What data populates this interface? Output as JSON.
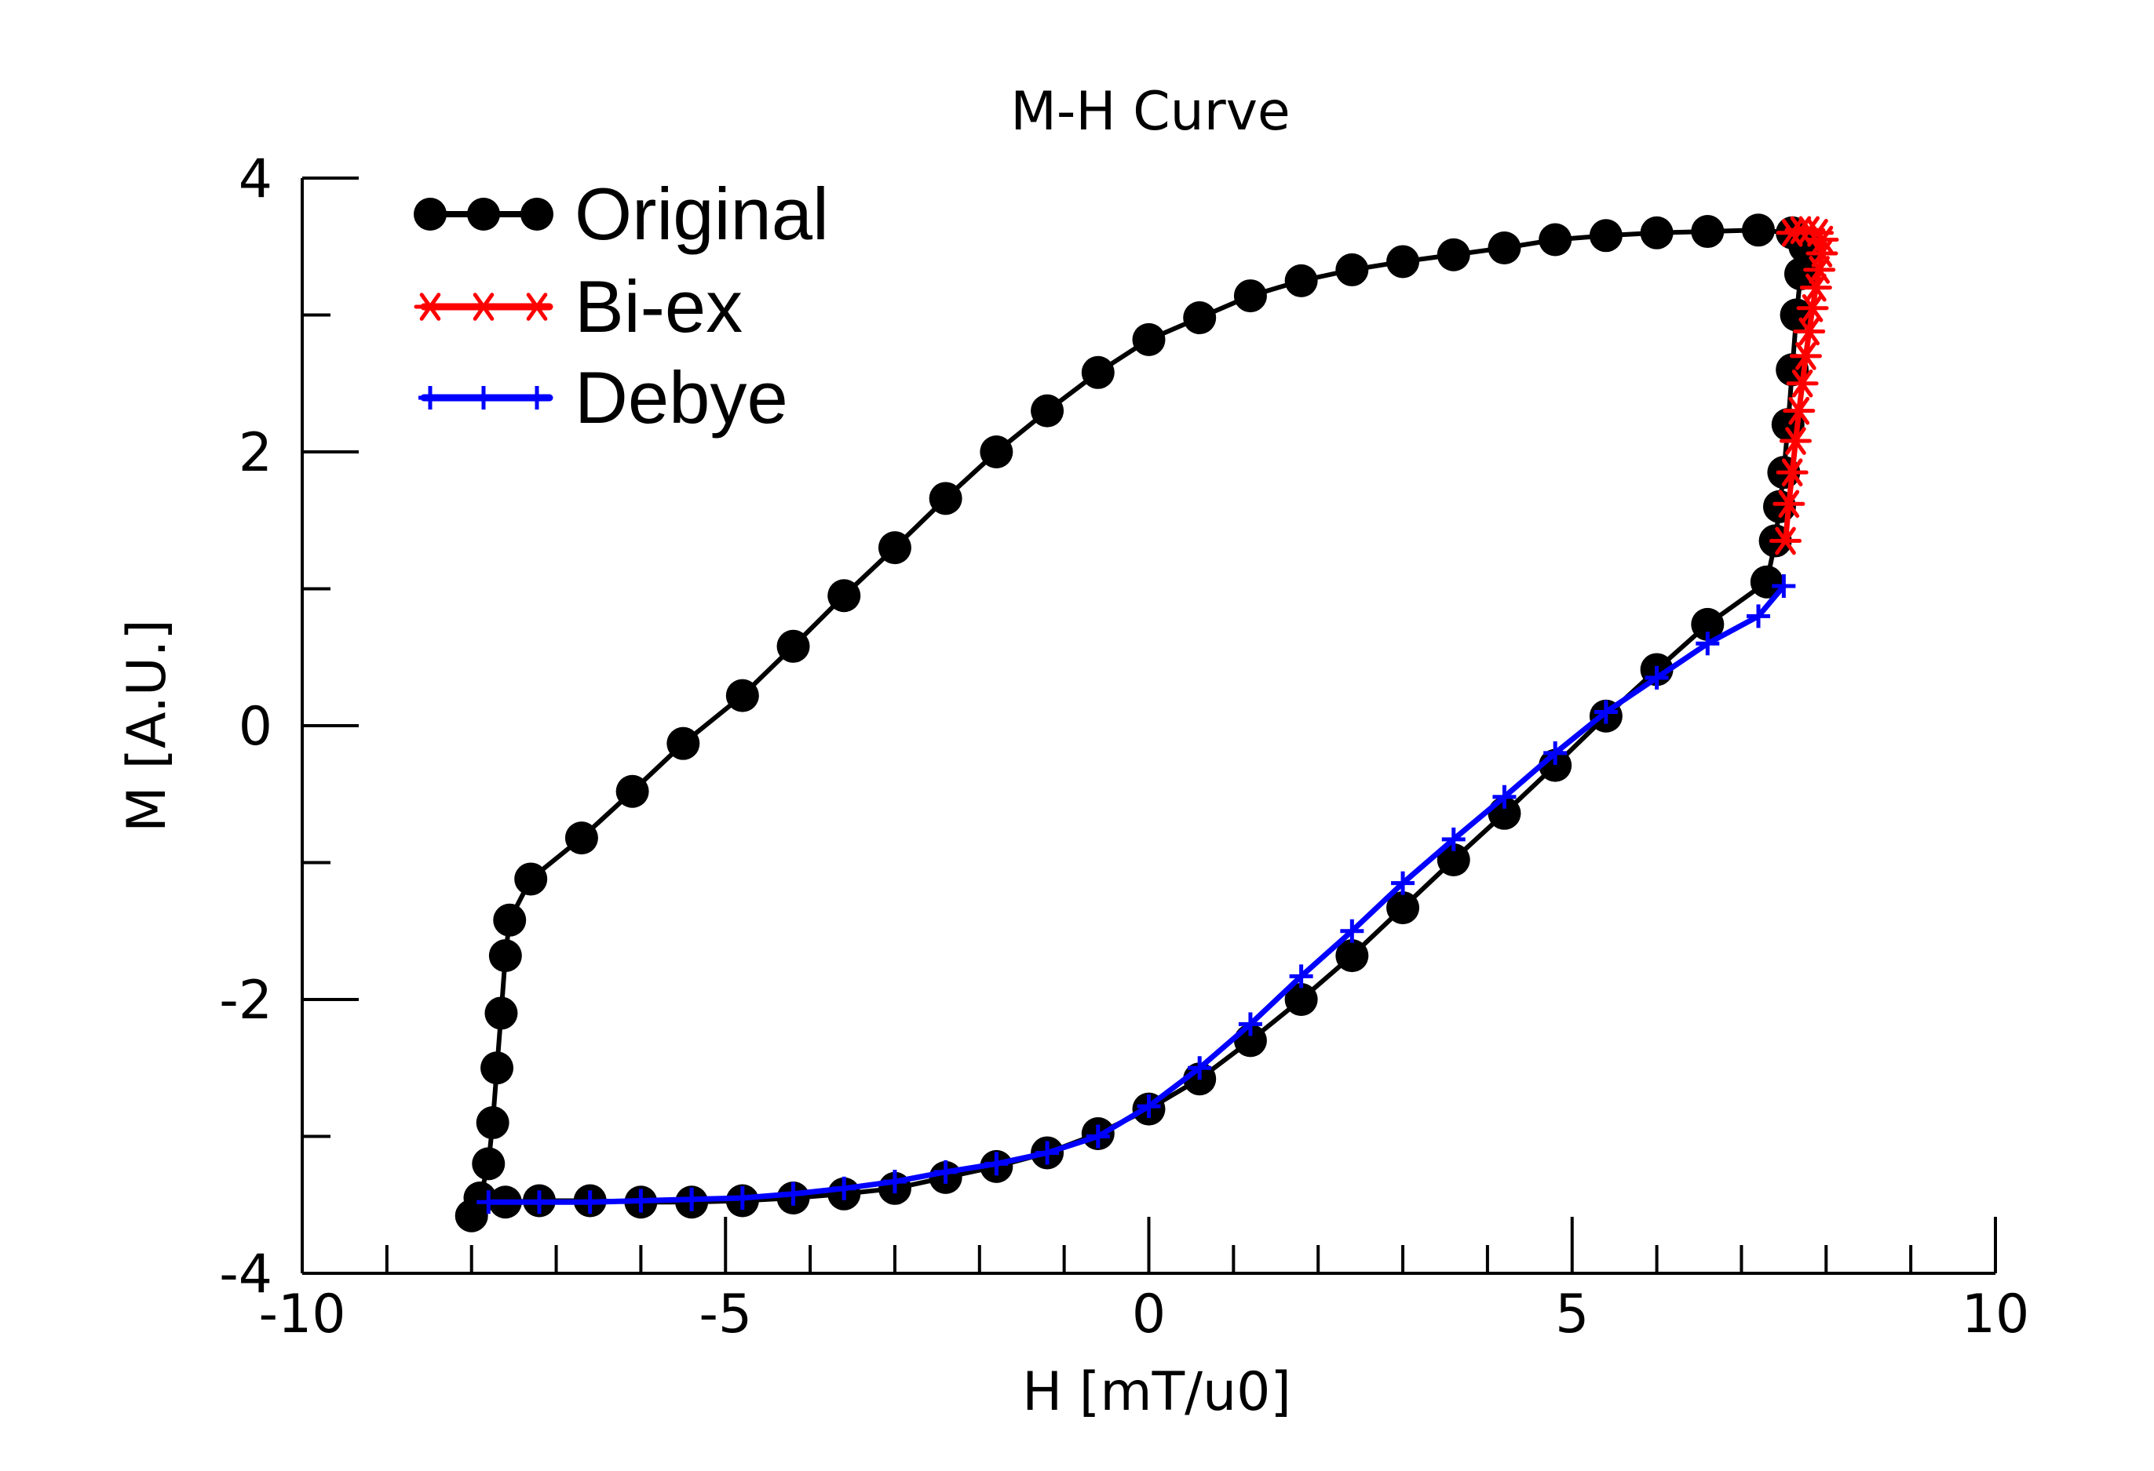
{
  "chart_data": {
    "type": "line",
    "title": "M-H Curve",
    "xlabel": "H [mT/u0]",
    "ylabel": "M [A.U.]",
    "xlim": [
      -10,
      10
    ],
    "ylim": [
      -4,
      4
    ],
    "x_ticks": [
      -10,
      -5,
      0,
      5,
      10
    ],
    "y_ticks": [
      -4,
      -2,
      0,
      2,
      4
    ],
    "x_tick_labels": [
      "-10",
      "-5",
      "0",
      "5",
      "10"
    ],
    "y_tick_labels": [
      "-4",
      "-2",
      "0",
      "2",
      "4"
    ],
    "grid": false,
    "legend_position": "top-left",
    "series": [
      {
        "name": "Original",
        "color": "#000000",
        "marker": "circle",
        "points": [
          [
            -8.0,
            -3.58
          ],
          [
            -7.9,
            -3.45
          ],
          [
            -7.8,
            -3.2
          ],
          [
            -7.75,
            -2.9
          ],
          [
            -7.7,
            -2.5
          ],
          [
            -7.65,
            -2.1
          ],
          [
            -7.6,
            -1.68
          ],
          [
            -7.55,
            -1.42
          ],
          [
            -7.3,
            -1.12
          ],
          [
            -6.7,
            -0.82
          ],
          [
            -6.1,
            -0.48
          ],
          [
            -5.5,
            -0.13
          ],
          [
            -4.8,
            0.22
          ],
          [
            -4.2,
            0.58
          ],
          [
            -3.6,
            0.95
          ],
          [
            -3.0,
            1.3
          ],
          [
            -2.4,
            1.66
          ],
          [
            -1.8,
            2.0
          ],
          [
            -1.2,
            2.3
          ],
          [
            -0.6,
            2.58
          ],
          [
            0.0,
            2.82
          ],
          [
            0.6,
            2.98
          ],
          [
            1.2,
            3.14
          ],
          [
            1.8,
            3.25
          ],
          [
            2.4,
            3.33
          ],
          [
            3.0,
            3.39
          ],
          [
            3.6,
            3.44
          ],
          [
            4.2,
            3.49
          ],
          [
            4.8,
            3.55
          ],
          [
            5.4,
            3.58
          ],
          [
            6.0,
            3.6
          ],
          [
            6.6,
            3.61
          ],
          [
            7.2,
            3.62
          ],
          [
            7.6,
            3.6
          ],
          [
            7.75,
            3.5
          ],
          [
            7.7,
            3.3
          ],
          [
            7.65,
            3.0
          ],
          [
            7.6,
            2.6
          ],
          [
            7.55,
            2.2
          ],
          [
            7.5,
            1.85
          ],
          [
            7.45,
            1.6
          ],
          [
            7.4,
            1.35
          ],
          [
            7.3,
            1.05
          ],
          [
            6.6,
            0.74
          ],
          [
            6.0,
            0.41
          ],
          [
            5.4,
            0.07
          ],
          [
            4.8,
            -0.29
          ],
          [
            4.2,
            -0.64
          ],
          [
            3.6,
            -0.98
          ],
          [
            3.0,
            -1.33
          ],
          [
            2.4,
            -1.68
          ],
          [
            1.8,
            -2.0
          ],
          [
            1.2,
            -2.3
          ],
          [
            0.6,
            -2.58
          ],
          [
            0.0,
            -2.8
          ],
          [
            -0.6,
            -2.98
          ],
          [
            -1.2,
            -3.12
          ],
          [
            -1.8,
            -3.22
          ],
          [
            -2.4,
            -3.3
          ],
          [
            -3.0,
            -3.38
          ],
          [
            -3.6,
            -3.42
          ],
          [
            -4.2,
            -3.45
          ],
          [
            -4.8,
            -3.47
          ],
          [
            -5.4,
            -3.48
          ],
          [
            -6.0,
            -3.48
          ],
          [
            -6.6,
            -3.47
          ],
          [
            -7.2,
            -3.47
          ],
          [
            -7.6,
            -3.48
          ]
        ]
      },
      {
        "name": "Bi-ex",
        "color": "#ff0000",
        "marker": "star",
        "points": [
          [
            7.52,
            1.35
          ],
          [
            7.56,
            1.62
          ],
          [
            7.6,
            1.85
          ],
          [
            7.64,
            2.08
          ],
          [
            7.68,
            2.3
          ],
          [
            7.72,
            2.5
          ],
          [
            7.76,
            2.7
          ],
          [
            7.8,
            2.88
          ],
          [
            7.84,
            3.05
          ],
          [
            7.88,
            3.2
          ],
          [
            7.92,
            3.33
          ],
          [
            7.95,
            3.45
          ],
          [
            7.96,
            3.55
          ],
          [
            7.9,
            3.6
          ],
          [
            7.8,
            3.62
          ],
          [
            7.7,
            3.62
          ],
          [
            7.6,
            3.6
          ]
        ]
      },
      {
        "name": "Debye",
        "color": "#0000ff",
        "marker": "plus",
        "points": [
          [
            -7.8,
            -3.48
          ],
          [
            -7.2,
            -3.48
          ],
          [
            -6.6,
            -3.48
          ],
          [
            -6.0,
            -3.47
          ],
          [
            -5.4,
            -3.46
          ],
          [
            -4.8,
            -3.45
          ],
          [
            -4.2,
            -3.42
          ],
          [
            -3.6,
            -3.38
          ],
          [
            -3.0,
            -3.33
          ],
          [
            -2.4,
            -3.26
          ],
          [
            -1.8,
            -3.2
          ],
          [
            -1.2,
            -3.12
          ],
          [
            -0.6,
            -3.0
          ],
          [
            0.0,
            -2.78
          ],
          [
            0.6,
            -2.5
          ],
          [
            1.2,
            -2.18
          ],
          [
            1.8,
            -1.83
          ],
          [
            2.4,
            -1.5
          ],
          [
            3.0,
            -1.15
          ],
          [
            3.6,
            -0.83
          ],
          [
            4.2,
            -0.52
          ],
          [
            4.8,
            -0.2
          ],
          [
            5.4,
            0.1
          ],
          [
            6.0,
            0.35
          ],
          [
            6.6,
            0.6
          ],
          [
            7.2,
            0.8
          ],
          [
            7.5,
            1.02
          ]
        ]
      }
    ]
  }
}
